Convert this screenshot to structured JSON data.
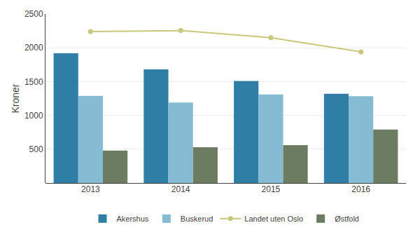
{
  "chart_data": {
    "type": "bar",
    "categories": [
      "2013",
      "2014",
      "2015",
      "2016"
    ],
    "series": [
      {
        "name": "Akershus",
        "color": "#2e7ea6",
        "values": [
          1920,
          1680,
          1510,
          1320
        ]
      },
      {
        "name": "Buskerud",
        "color": "#85bcd4",
        "values": [
          1290,
          1190,
          1310,
          1285
        ]
      },
      {
        "name": "Landet uten Oslo",
        "type": "line",
        "marker": "circle",
        "color": "#c8c87a",
        "values": [
          2240,
          2255,
          2150,
          1940
        ]
      },
      {
        "name": "Østfold",
        "color": "#6b7c60",
        "values": [
          480,
          530,
          560,
          790
        ]
      }
    ],
    "ylabel": "Kroner",
    "ylim": [
      0,
      2500
    ],
    "yticks": [
      500,
      1000,
      1500,
      2000,
      2500
    ],
    "grid": true,
    "legend": "bottom"
  }
}
